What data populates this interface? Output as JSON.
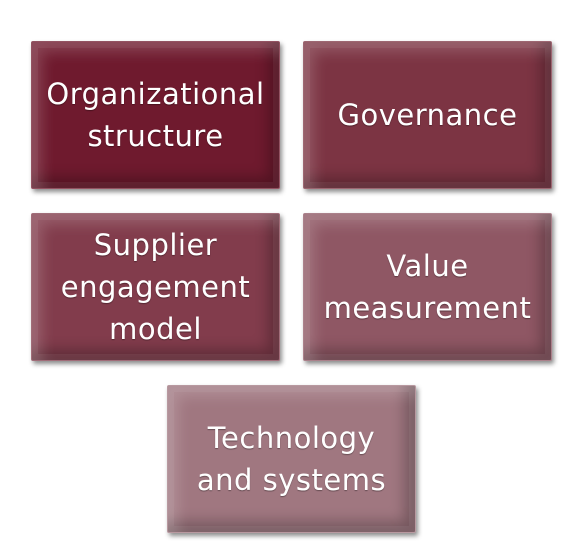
{
  "diagram": {
    "boxes": [
      {
        "label": "Organizational\nstructure",
        "color": "#6f1a2e"
      },
      {
        "label": "Governance",
        "color": "#7c3443"
      },
      {
        "label": "Supplier\nengagement\nmodel",
        "color": "#823c4c"
      },
      {
        "label": "Value\nmeasurement",
        "color": "#8f5764"
      },
      {
        "label": "Technology\nand systems",
        "color": "#a07780"
      }
    ]
  }
}
